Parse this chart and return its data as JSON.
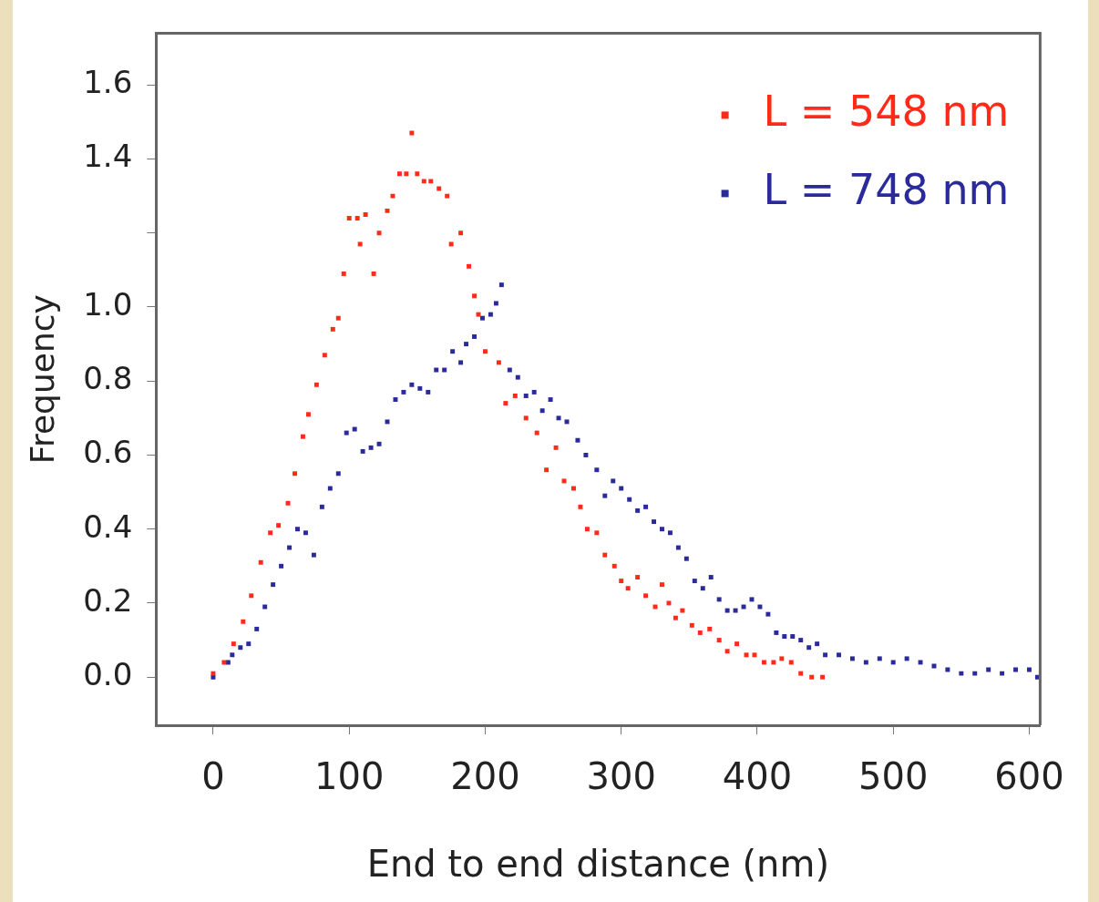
{
  "chart_data": {
    "type": "scatter",
    "xlabel": "End to end distance (nm)",
    "ylabel": "Frequency",
    "xlim": [
      -42,
      608
    ],
    "ylim": [
      -0.13,
      1.74
    ],
    "xticks": [
      0,
      100,
      200,
      300,
      400,
      500,
      600
    ],
    "yticks": [
      {
        "value": 0,
        "label": "0.0"
      },
      {
        "value": 0.2,
        "label": "0.2"
      },
      {
        "value": 0.4,
        "label": "0.4"
      },
      {
        "value": 0.6,
        "label": "0.6"
      },
      {
        "value": 0.8,
        "label": "0.8"
      },
      {
        "value": 1,
        "label": "1.0"
      },
      {
        "value": 1.2,
        "label": null
      },
      {
        "value": 1.4,
        "label": "1.4"
      },
      {
        "value": 1.6,
        "label": "1.6"
      }
    ],
    "grid": false,
    "legend": "top right",
    "marker": "square",
    "series": [
      {
        "name": "L = 548 nm",
        "color": "#ff2a1a",
        "x": [
          0,
          8,
          15,
          22,
          28,
          35,
          42,
          48,
          55,
          60,
          66,
          70,
          76,
          82,
          88,
          92,
          96,
          100,
          106,
          108,
          112,
          118,
          122,
          128,
          132,
          137,
          142,
          146,
          150,
          155,
          160,
          166,
          172,
          175,
          182,
          188,
          192,
          195,
          200,
          210,
          215,
          222,
          230,
          238,
          245,
          252,
          258,
          265,
          270,
          275,
          282,
          288,
          295,
          300,
          305,
          312,
          318,
          325,
          330,
          335,
          340,
          345,
          352,
          358,
          365,
          372,
          378,
          385,
          392,
          398,
          405,
          412,
          418,
          425,
          432,
          440,
          448
        ],
        "values": [
          0.01,
          0.04,
          0.09,
          0.15,
          0.22,
          0.31,
          0.39,
          0.41,
          0.47,
          0.55,
          0.65,
          0.71,
          0.79,
          0.87,
          0.94,
          0.97,
          1.09,
          1.24,
          1.24,
          1.17,
          1.25,
          1.09,
          1.2,
          1.26,
          1.3,
          1.36,
          1.36,
          1.47,
          1.36,
          1.34,
          1.34,
          1.32,
          1.3,
          1.17,
          1.2,
          1.11,
          1.03,
          0.98,
          0.88,
          0.85,
          0.74,
          0.76,
          0.7,
          0.66,
          0.56,
          0.62,
          0.53,
          0.51,
          0.46,
          0.4,
          0.39,
          0.33,
          0.3,
          0.26,
          0.24,
          0.27,
          0.22,
          0.19,
          0.25,
          0.2,
          0.16,
          0.18,
          0.14,
          0.12,
          0.13,
          0.1,
          0.07,
          0.09,
          0.06,
          0.06,
          0.04,
          0.04,
          0.05,
          0.04,
          0.01,
          0,
          0
        ]
      },
      {
        "name": "L = 748 nm",
        "color": "#2a2a9a",
        "x": [
          0,
          11,
          14,
          20,
          26,
          32,
          38,
          44,
          50,
          56,
          62,
          68,
          74,
          80,
          86,
          92,
          98,
          104,
          110,
          116,
          122,
          128,
          134,
          140,
          146,
          152,
          158,
          164,
          170,
          176,
          182,
          186,
          192,
          198,
          204,
          208,
          212,
          218,
          224,
          230,
          236,
          242,
          248,
          254,
          260,
          268,
          274,
          282,
          288,
          294,
          300,
          306,
          312,
          318,
          324,
          330,
          336,
          342,
          348,
          354,
          360,
          366,
          372,
          378,
          384,
          390,
          396,
          402,
          408,
          414,
          420,
          426,
          432,
          438,
          444,
          450,
          460,
          470,
          480,
          490,
          500,
          510,
          520,
          530,
          540,
          550,
          560,
          570,
          580,
          590,
          600,
          606
        ],
        "values": [
          0,
          0.04,
          0.06,
          0.08,
          0.09,
          0.13,
          0.19,
          0.25,
          0.3,
          0.35,
          0.4,
          0.39,
          0.33,
          0.46,
          0.51,
          0.55,
          0.66,
          0.67,
          0.61,
          0.62,
          0.63,
          0.69,
          0.75,
          0.77,
          0.79,
          0.78,
          0.77,
          0.83,
          0.83,
          0.88,
          0.85,
          0.9,
          0.92,
          0.97,
          0.98,
          1.01,
          1.06,
          0.83,
          0.81,
          0.76,
          0.77,
          0.72,
          0.75,
          0.7,
          0.69,
          0.64,
          0.6,
          0.56,
          0.49,
          0.53,
          0.51,
          0.48,
          0.45,
          0.46,
          0.42,
          0.4,
          0.39,
          0.35,
          0.32,
          0.26,
          0.24,
          0.27,
          0.21,
          0.18,
          0.18,
          0.19,
          0.21,
          0.19,
          0.17,
          0.12,
          0.11,
          0.11,
          0.1,
          0.08,
          0.09,
          0.06,
          0.06,
          0.05,
          0.04,
          0.05,
          0.04,
          0.05,
          0.04,
          0.03,
          0.02,
          0.01,
          0.01,
          0.02,
          0.01,
          0.02,
          0.02,
          0
        ]
      }
    ]
  }
}
